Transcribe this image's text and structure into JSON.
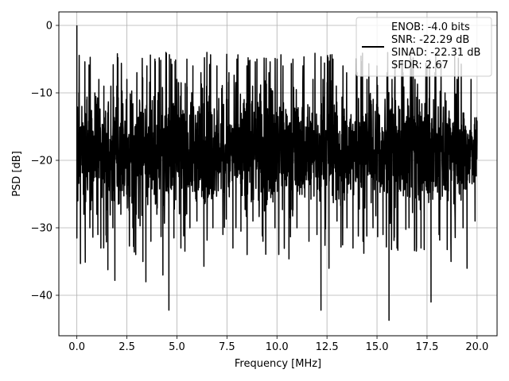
{
  "chart_data": {
    "type": "line",
    "title": "",
    "xlabel": "Frequency [MHz]",
    "ylabel": "PSD [dB]",
    "xlim": [
      -0.9,
      21.0
    ],
    "ylim": [
      -46.0,
      2.0
    ],
    "grid": true,
    "x_ticks": [
      0.0,
      2.5,
      5.0,
      7.5,
      10.0,
      12.5,
      15.0,
      17.5,
      20.0
    ],
    "x_tick_labels": [
      "0.0",
      "2.5",
      "5.0",
      "7.5",
      "10.0",
      "12.5",
      "15.0",
      "17.5",
      "20.0"
    ],
    "y_ticks": [
      0,
      -10,
      -20,
      -30,
      -40
    ],
    "y_tick_labels": [
      "0",
      "−10",
      "−20",
      "−30",
      "−40"
    ],
    "legend": {
      "placement": "upper-right",
      "entries": [
        "ENOB: -4.0 bits",
        "SNR: -22.29 dB",
        "SINAD: -22.31 dB",
        "SFDR: 2.67"
      ]
    },
    "series": [
      {
        "color": "#000000",
        "x_start": 0.0,
        "x_end": 20.0,
        "noise_floor_mean_db": -18,
        "noise_upper_db": -6,
        "noise_lower_db": -31,
        "values": [
          [
            0.0,
            0.0
          ],
          [
            0.05,
            -26
          ],
          [
            0.1,
            -10
          ],
          [
            0.18,
            -35.3
          ],
          [
            0.25,
            -12
          ],
          [
            0.35,
            -28
          ],
          [
            0.42,
            -35.1
          ],
          [
            0.5,
            -11
          ],
          [
            0.65,
            -30
          ],
          [
            0.8,
            -31.4
          ],
          [
            0.9,
            -10
          ],
          [
            1.0,
            -28
          ],
          [
            1.05,
            -31
          ],
          [
            1.1,
            -8
          ],
          [
            1.2,
            -33
          ],
          [
            1.35,
            -9
          ],
          [
            1.5,
            -25
          ],
          [
            1.55,
            -36.2
          ],
          [
            1.7,
            -9
          ],
          [
            1.8,
            -30
          ],
          [
            1.9,
            -37.8
          ],
          [
            2.0,
            -9
          ],
          [
            2.2,
            -28
          ],
          [
            2.5,
            -8
          ],
          [
            2.6,
            -27
          ],
          [
            2.8,
            -30
          ],
          [
            3.0,
            -7
          ],
          [
            3.3,
            -35
          ],
          [
            3.45,
            -38
          ],
          [
            3.5,
            -6
          ],
          [
            3.7,
            -32
          ],
          [
            3.9,
            -5
          ],
          [
            4.0,
            -28
          ],
          [
            4.3,
            -37
          ],
          [
            4.45,
            -4
          ],
          [
            4.6,
            -42.2
          ],
          [
            4.7,
            -5
          ],
          [
            4.85,
            -31.5
          ],
          [
            5.0,
            -8
          ],
          [
            5.2,
            -33
          ],
          [
            5.5,
            -5
          ],
          [
            5.65,
            -30
          ],
          [
            5.8,
            -6
          ],
          [
            6.0,
            -29
          ],
          [
            6.2,
            -7
          ],
          [
            6.35,
            -35.7
          ],
          [
            6.5,
            -4
          ],
          [
            6.8,
            -30
          ],
          [
            7.0,
            -6
          ],
          [
            7.3,
            -31
          ],
          [
            7.6,
            -7
          ],
          [
            7.8,
            -33
          ],
          [
            8.0,
            -5
          ],
          [
            8.2,
            -30.5
          ],
          [
            8.5,
            -6
          ],
          [
            8.8,
            -29
          ],
          [
            9.0,
            -5
          ],
          [
            9.3,
            -32
          ],
          [
            9.6,
            -7
          ],
          [
            9.9,
            -30
          ],
          [
            10.3,
            -6
          ],
          [
            10.6,
            -34.6
          ],
          [
            10.8,
            -5
          ],
          [
            11.0,
            -30
          ],
          [
            11.3,
            -6
          ],
          [
            11.6,
            -32
          ],
          [
            11.8,
            -8
          ],
          [
            12.0,
            -31
          ],
          [
            12.2,
            -42.2
          ],
          [
            12.3,
            -8
          ],
          [
            12.6,
            -36
          ],
          [
            12.8,
            -5
          ],
          [
            13.0,
            -29
          ],
          [
            13.3,
            -6
          ],
          [
            13.5,
            -30
          ],
          [
            13.8,
            -33
          ],
          [
            14.0,
            -7
          ],
          [
            14.3,
            -32
          ],
          [
            14.5,
            -8
          ],
          [
            14.8,
            -30
          ],
          [
            15.0,
            -6
          ],
          [
            15.3,
            -31
          ],
          [
            15.5,
            -7
          ],
          [
            15.6,
            -43.7
          ],
          [
            15.75,
            -8
          ],
          [
            16.0,
            -33
          ],
          [
            16.3,
            -7
          ],
          [
            16.6,
            -30
          ],
          [
            16.9,
            -8
          ],
          [
            17.2,
            -33
          ],
          [
            17.5,
            -6
          ],
          [
            17.7,
            -41
          ],
          [
            17.9,
            -7
          ],
          [
            18.1,
            -31
          ],
          [
            18.4,
            -10
          ],
          [
            18.7,
            -35
          ],
          [
            19.0,
            -8
          ],
          [
            19.3,
            -30
          ],
          [
            19.5,
            -36
          ],
          [
            19.7,
            -8
          ],
          [
            19.9,
            -29
          ],
          [
            20.0,
            -17
          ]
        ]
      }
    ]
  }
}
